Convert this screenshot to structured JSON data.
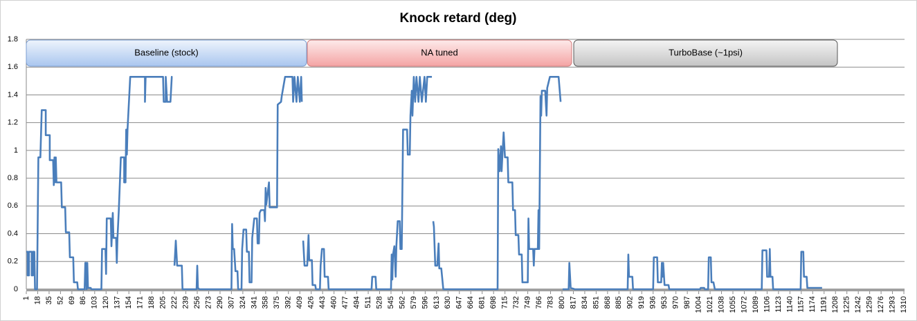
{
  "chart_data": {
    "type": "line",
    "title": "Knock retard (deg)",
    "annotations": [
      "Baseline (stock)",
      "NA tuned",
      "TurboBase (~1psi)"
    ],
    "xlim": [
      1,
      1311
    ],
    "xticks": [
      1,
      18,
      35,
      52,
      69,
      86,
      103,
      120,
      137,
      154,
      171,
      188,
      205,
      222,
      239,
      256,
      273,
      290,
      307,
      324,
      341,
      358,
      375,
      392,
      409,
      426,
      443,
      460,
      477,
      494,
      511,
      528,
      545,
      562,
      579,
      596,
      613,
      630,
      647,
      664,
      681,
      698,
      715,
      732,
      749,
      766,
      783,
      800,
      817,
      834,
      851,
      868,
      885,
      902,
      919,
      936,
      953,
      970,
      987,
      1004,
      1021,
      1038,
      1055,
      1072,
      1089,
      1106,
      1123,
      1140,
      1157,
      1174,
      1191,
      1208,
      1225,
      1242,
      1259,
      1276,
      1293,
      1310
    ],
    "ylim": [
      0,
      1.8
    ],
    "yticks": [
      0,
      0.2,
      0.4,
      0.6,
      0.8,
      1,
      1.2,
      1.4,
      1.6,
      1.8
    ],
    "grid": true,
    "series": [
      {
        "name": "Knock retard",
        "color": "#4a7ebb",
        "x": [
          1,
          3,
          3,
          5,
          5,
          9,
          9,
          11,
          11,
          13,
          14,
          17,
          19,
          22,
          24,
          30,
          30,
          36,
          36,
          41,
          42,
          43,
          44,
          45,
          46,
          53,
          54,
          59,
          60,
          65,
          66,
          71,
          72,
          77,
          78,
          88,
          89,
          90,
          91,
          92,
          93,
          97,
          98,
          113,
          114,
          119,
          120,
          121,
          127,
          128,
          130,
          131,
          135,
          136,
          137,
          139,
          142,
          147,
          147,
          149,
          150,
          151,
          152,
          156,
          178,
          178,
          179,
          205,
          206,
          209,
          209,
          211,
          216,
          218,
          219,
          220,
          222,
          224,
          226,
          233,
          234,
          255,
          256,
          257,
          259,
          307,
          308,
          309,
          311,
          313,
          316,
          317,
          322,
          323,
          325,
          329,
          330,
          333,
          334,
          337,
          338,
          341,
          345,
          346,
          348,
          349,
          351,
          356,
          357,
          358,
          359,
          363,
          364,
          375,
          376,
          381,
          382,
          387,
          398,
          399,
          401,
          404,
          406,
          409,
          411,
          412,
          413,
          414,
          416,
          420,
          422,
          423,
          427,
          428,
          432,
          433,
          439,
          440,
          442,
          445,
          446,
          451,
          452,
          516,
          517,
          522,
          523,
          545,
          546,
          547,
          548,
          550,
          552,
          553,
          555,
          558,
          559,
          561,
          563,
          569,
          570,
          573,
          574,
          576,
          577,
          579,
          581,
          583,
          586,
          588,
          591,
          595,
          597,
          599,
          606,
          607,
          608,
          609,
          611,
          614,
          616,
          617,
          620,
          623,
          627,
          704,
          705,
          707,
          709,
          710,
          711,
          713,
          715,
          719,
          720,
          726,
          727,
          730,
          731,
          735,
          736,
          740,
          741,
          749,
          750,
          751,
          757,
          758,
          759,
          764,
          765,
          766,
          768,
          769,
          770,
          775,
          777,
          778,
          782,
          795,
          798,
          799,
          801,
          810,
          811,
          813,
          819,
          898,
          899,
          900,
          905,
          906,
          936,
          937,
          942,
          943,
          948,
          949,
          950,
          951,
          953,
          959,
          960,
          1006,
          1007,
          1012,
          1013,
          1018,
          1019,
          1022,
          1023,
          1026,
          1028,
          1098,
          1099,
          1105,
          1106,
          1109,
          1110,
          1111,
          1114,
          1115,
          1156,
          1157,
          1160,
          1161,
          1165,
          1166,
          1188
        ],
        "values": [
          0.27,
          0.27,
          0.1,
          0.1,
          0.27,
          0.27,
          0.1,
          0.1,
          0.27,
          0.27,
          0,
          0,
          0.95,
          0.95,
          1.29,
          1.29,
          1.11,
          1.11,
          0.93,
          0.93,
          0.75,
          0.95,
          0.77,
          0.95,
          0.77,
          0.77,
          0.59,
          0.59,
          0.41,
          0.41,
          0.23,
          0.23,
          0.05,
          0.05,
          0,
          0,
          0.19,
          0.19,
          0,
          0.19,
          0.01,
          0.01,
          0,
          0,
          0.29,
          0.29,
          0.11,
          0.51,
          0.51,
          0.31,
          0.55,
          0.37,
          0.37,
          0.19,
          0.37,
          0.57,
          0.95,
          0.95,
          0.77,
          0.77,
          1.15,
          0.97,
          1.15,
          1.53,
          1.53,
          1.35,
          1.53,
          1.53,
          1.35,
          1.35,
          1.53,
          1.35,
          1.35,
          1.53,
          1.53,
          null,
          0.17,
          0.35,
          0.17,
          0.17,
          0,
          0,
          0.17,
          0.01,
          0,
          0,
          0.47,
          0.29,
          0.29,
          0.13,
          0.13,
          0,
          0,
          0.29,
          0.43,
          0.43,
          0.27,
          0.27,
          0.05,
          0.05,
          0.37,
          0.51,
          0.51,
          0.33,
          0.33,
          0.55,
          0.57,
          0.57,
          0.49,
          0.73,
          0.61,
          0.77,
          0.59,
          0.59,
          1.33,
          1.35,
          1.39,
          1.53,
          1.53,
          1.35,
          1.53,
          1.35,
          1.53,
          1.35,
          1.53,
          1.35,
          null,
          0.35,
          0.17,
          0.17,
          0.39,
          0.21,
          0.21,
          0.03,
          0.03,
          0,
          0,
          0.17,
          0.29,
          0.29,
          0.09,
          0.09,
          0,
          0,
          0.09,
          0.09,
          0,
          0,
          0.25,
          0.07,
          0.25,
          0.31,
          0.09,
          0.31,
          0.49,
          0.49,
          0.29,
          0.29,
          1.15,
          1.15,
          0.97,
          0.97,
          1.25,
          1.43,
          1.25,
          1.53,
          1.35,
          1.53,
          1.35,
          1.53,
          1.35,
          1.53,
          1.35,
          1.53,
          1.53,
          null,
          0.49,
          0.45,
          0.17,
          0.17,
          0.33,
          0.15,
          0.15,
          0,
          0,
          0,
          1.01,
          0.85,
          1.03,
          0.85,
          0.95,
          1.13,
          0.95,
          0.95,
          0.77,
          0.77,
          0.57,
          0.57,
          0.39,
          0.39,
          0.25,
          0.25,
          0.05,
          0.05,
          0.51,
          0.29,
          0.29,
          0.17,
          0.29,
          0.29,
          0.57,
          0.29,
          1.39,
          1.25,
          1.43,
          1.43,
          1.25,
          1.45,
          1.53,
          1.53,
          1.35,
          null,
          0,
          0,
          0.19,
          0.01,
          0,
          0,
          0.25,
          0.09,
          0.09,
          0,
          0,
          0.23,
          0.23,
          0.05,
          0.05,
          0.19,
          0.09,
          0.19,
          0.03,
          0.03,
          0,
          0,
          0.01,
          0.01,
          0,
          0,
          0.23,
          0.23,
          0.05,
          0.05,
          0,
          0,
          0.28,
          0.28,
          0.09,
          0.09,
          0.29,
          0.09,
          0.09,
          0,
          0,
          0.27,
          0.27,
          0.09,
          0.09,
          0.01,
          0.01
        ]
      }
    ]
  }
}
